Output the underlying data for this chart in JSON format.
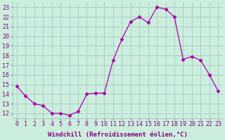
{
  "x": [
    0,
    1,
    2,
    3,
    4,
    5,
    6,
    7,
    8,
    9,
    10,
    11,
    12,
    13,
    14,
    15,
    16,
    17,
    18,
    19,
    20,
    21,
    22,
    23
  ],
  "y": [
    14.8,
    13.8,
    13.0,
    12.8,
    12.0,
    12.0,
    11.8,
    12.2,
    14.0,
    14.1,
    14.1,
    17.5,
    19.7,
    21.5,
    22.0,
    21.4,
    23.0,
    22.8,
    22.0,
    17.6,
    17.9,
    17.5,
    16.0,
    14.3
  ],
  "line_color": "#aa00aa",
  "marker": "D",
  "marker_size": 2.5,
  "bg_color": "#cceedd",
  "grid_color": "#aacccc",
  "xlabel": "Windchill (Refroidissement éolien,°C)",
  "ylabel_ticks": [
    12,
    13,
    14,
    15,
    16,
    17,
    18,
    19,
    20,
    21,
    22,
    23
  ],
  "xlim": [
    -0.5,
    23.5
  ],
  "ylim": [
    11.5,
    23.5
  ],
  "label_color": "#880088",
  "label_fontsize": 6.5,
  "tick_fontsize": 6
}
